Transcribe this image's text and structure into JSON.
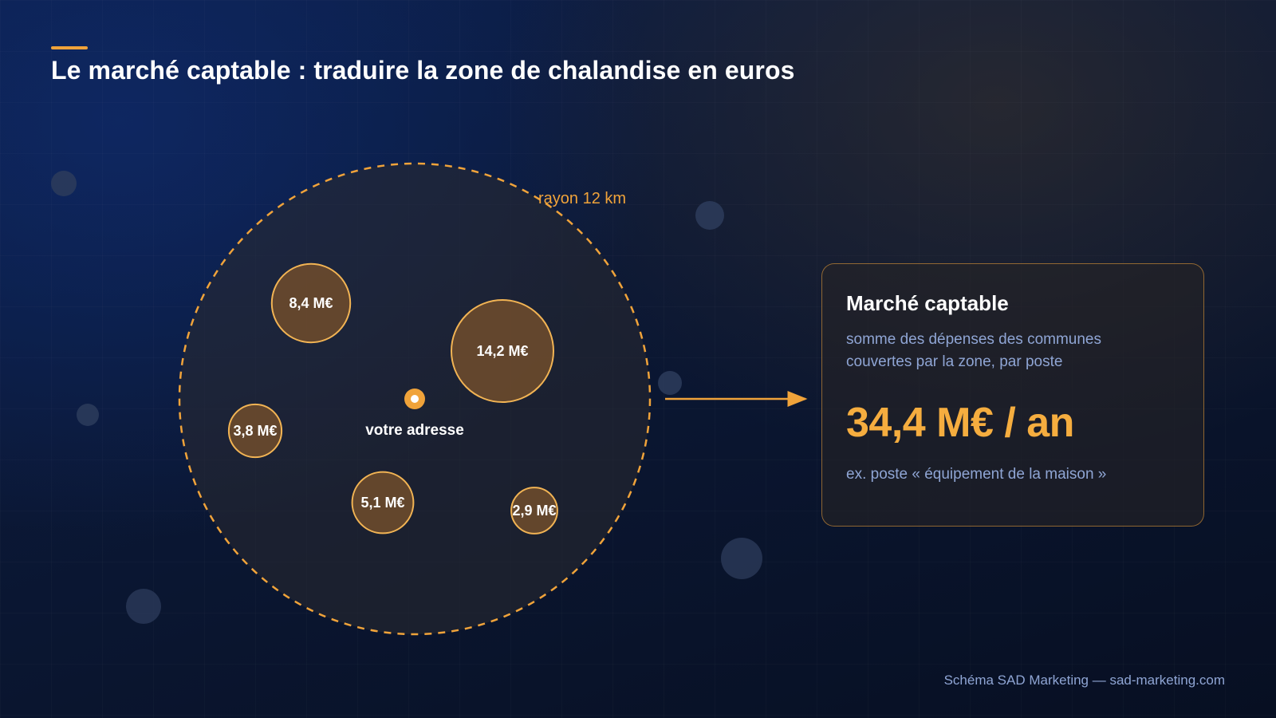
{
  "title": "Le marché captable : traduire la zone de chalandise en euros",
  "diagram": {
    "radius_label": "rayon 12 km",
    "center_label": "votre adresse",
    "communes": [
      {
        "label": "8,4 M€",
        "value": 8.4
      },
      {
        "label": "14,2 M€",
        "value": 14.2
      },
      {
        "label": "3,8 M€",
        "value": 3.8
      },
      {
        "label": "5,1 M€",
        "value": 5.1
      },
      {
        "label": "2,9 M€",
        "value": 2.9
      }
    ],
    "colors": {
      "accent": "#f0a33a",
      "bubble_fill": "#6b4a2c",
      "bubble_stroke": "#f2b454",
      "zone_fill": "#2a2a30",
      "decor_circle": "#2d3c5c"
    }
  },
  "card": {
    "title": "Marché captable",
    "subtitle": "somme des dépenses des communes couvertes par la zone, par poste",
    "value": "34,4 M€ / an",
    "note": "ex. poste « équipement de la maison »"
  },
  "footer": "Schéma SAD Marketing — sad-marketing.com"
}
